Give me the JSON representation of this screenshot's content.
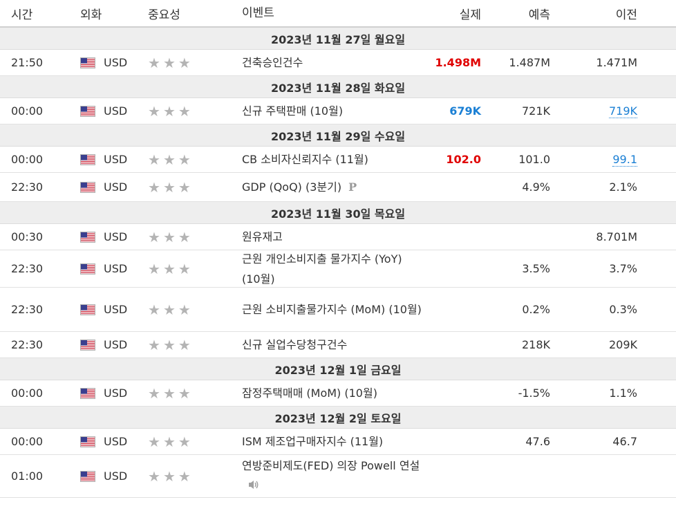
{
  "header": {
    "time": "시간",
    "currency": "외화",
    "importance": "중요성",
    "event": "이벤트",
    "actual": "실제",
    "forecast": "예측",
    "previous": "이전"
  },
  "days": [
    {
      "date": "2023년 11월 27일 월요일",
      "events": [
        {
          "time": "21:50",
          "currency": "USD",
          "importance": 3,
          "name": "건축승인건수",
          "actual": "1.498M",
          "actual_state": "red",
          "forecast": "1.487M",
          "previous": "1.471M",
          "previous_style": "",
          "prelim": "",
          "speech": false
        }
      ]
    },
    {
      "date": "2023년 11월 28일 화요일",
      "events": [
        {
          "time": "00:00",
          "currency": "USD",
          "importance": 3,
          "name": "신규 주택판매 (10월)",
          "actual": "679K",
          "actual_state": "blue",
          "forecast": "721K",
          "previous": "719K",
          "previous_style": "link",
          "prelim": "",
          "speech": false
        }
      ]
    },
    {
      "date": "2023년 11월 29일 수요일",
      "events": [
        {
          "time": "00:00",
          "currency": "USD",
          "importance": 3,
          "name": "CB 소비자신뢰지수 (11월)",
          "actual": "102.0",
          "actual_state": "red",
          "forecast": "101.0",
          "previous": "99.1",
          "previous_style": "link",
          "prelim": "",
          "speech": false
        },
        {
          "time": "22:30",
          "currency": "USD",
          "importance": 3,
          "name": "GDP (QoQ) (3분기)",
          "actual": "",
          "actual_state": "",
          "forecast": "4.9%",
          "previous": "2.1%",
          "previous_style": "",
          "prelim": "P",
          "speech": false
        }
      ]
    },
    {
      "date": "2023년 11월 30일 목요일",
      "events": [
        {
          "time": "00:30",
          "currency": "USD",
          "importance": 3,
          "name": "원유재고",
          "actual": "",
          "actual_state": "",
          "forecast": "",
          "previous": "8.701M",
          "previous_style": "",
          "prelim": "",
          "speech": false
        },
        {
          "time": "22:30",
          "currency": "USD",
          "importance": 3,
          "name": "근원 개인소비지출 물가지수 (YoY) (10월)",
          "actual": "",
          "actual_state": "",
          "forecast": "3.5%",
          "previous": "3.7%",
          "previous_style": "",
          "prelim": "",
          "speech": false
        },
        {
          "time": "22:30",
          "currency": "USD",
          "importance": 3,
          "name": "근원 소비지출물가지수 (MoM) (10월)",
          "actual": "",
          "actual_state": "",
          "forecast": "0.2%",
          "previous": "0.3%",
          "previous_style": "",
          "prelim": "",
          "speech": false
        },
        {
          "time": "22:30",
          "currency": "USD",
          "importance": 3,
          "name": "신규 실업수당청구건수",
          "actual": "",
          "actual_state": "",
          "forecast": "218K",
          "previous": "209K",
          "previous_style": "",
          "prelim": "",
          "speech": false
        }
      ]
    },
    {
      "date": "2023년 12월 1일 금요일",
      "events": [
        {
          "time": "00:00",
          "currency": "USD",
          "importance": 3,
          "name": "잠정주택매매 (MoM) (10월)",
          "actual": "",
          "actual_state": "",
          "forecast": "-1.5%",
          "previous": "1.1%",
          "previous_style": "",
          "prelim": "",
          "speech": false
        }
      ]
    },
    {
      "date": "2023년 12월 2일 토요일",
      "events": [
        {
          "time": "00:00",
          "currency": "USD",
          "importance": 3,
          "name": "ISM 제조업구매자지수 (11월)",
          "actual": "",
          "actual_state": "",
          "forecast": "47.6",
          "previous": "46.7",
          "previous_style": "",
          "prelim": "",
          "speech": false
        },
        {
          "time": "01:00",
          "currency": "USD",
          "importance": 3,
          "name": "연방준비제도(FED) 의장 Powell 연설",
          "actual": "",
          "actual_state": "",
          "forecast": "",
          "previous": "",
          "previous_style": "",
          "prelim": "",
          "speech": true
        }
      ]
    }
  ],
  "colors": {
    "actual_better": "#e00000",
    "actual_worse": "#1a7fd4",
    "star": "#b4b4b4",
    "date_band": "#eeeeee"
  },
  "icons": {
    "flag": "us-flag-icon",
    "star": "star-icon",
    "prelim": "preliminary-icon",
    "speech": "speaker-icon"
  }
}
